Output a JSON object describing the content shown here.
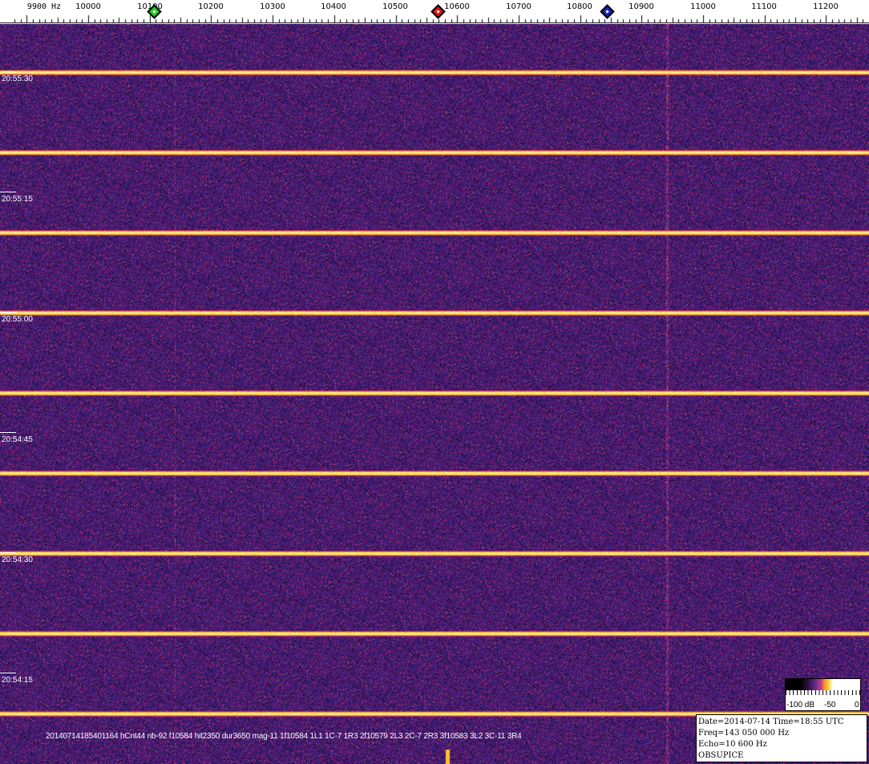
{
  "frequency_axis": {
    "unit_label": "9900 Hz",
    "labels": [
      "10000",
      "10100",
      "10200",
      "10300",
      "10400",
      "10500",
      "10600",
      "10700",
      "10800",
      "10900",
      "11000",
      "11100",
      "11200"
    ]
  },
  "markers": [
    {
      "name": "green-marker",
      "color": "#22cc22"
    },
    {
      "name": "red-marker",
      "color": "#dd1111"
    },
    {
      "name": "blue-marker",
      "color": "#1122bb"
    }
  ],
  "time_labels": [
    "20:55:30",
    "20:55:15",
    "20:55:00",
    "20:54:45",
    "20:54:30",
    "20:54:15"
  ],
  "detection_line": "20140714185401164 hCnt44 nb-92 f10584 hit2350 dur3650 mag-11 1f10584 1L1 1C-7 1R3 2f10579 2L3 2C-7 2R3 3f10583 3L2 3C-11 3R4",
  "color_scale": {
    "min_label": "-100 dB",
    "mid_label": "-50",
    "max_label": "0"
  },
  "info_box": {
    "date_time": "Date=2014-07-14 Time=18:55 UTC",
    "freq": "Freq=143 050 000 Hz",
    "echo": "Echo=10 600 Hz",
    "station": "OBSUPICE"
  },
  "colors": {
    "background": "#2e1a5c",
    "signal": "#ffd040"
  }
}
